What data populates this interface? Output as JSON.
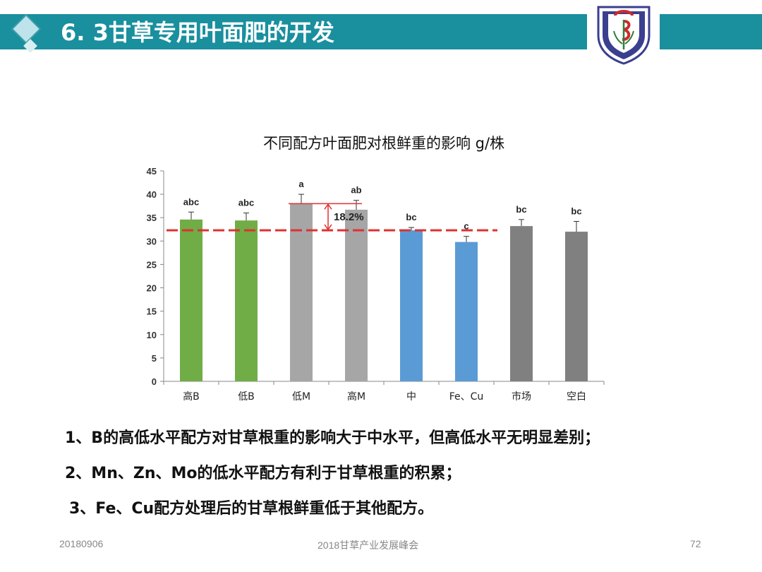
{
  "header": {
    "title": "6. 3甘草专用叶面肥的开发",
    "bar_color": "#1a8f9e"
  },
  "logo_icon": "university-shield-logo",
  "chart_data": {
    "type": "bar",
    "title": "不同配方叶面肥对根鲜重的影响 g/株",
    "categories": [
      "高B",
      "低B",
      "低M",
      "高M",
      "中",
      "Fe、Cu",
      "市场",
      "空白"
    ],
    "values": [
      34.6,
      34.4,
      38.0,
      36.7,
      32.3,
      29.8,
      33.2,
      32.0
    ],
    "errors": [
      1.6,
      1.6,
      2.0,
      2.0,
      0.6,
      1.2,
      1.4,
      2.2
    ],
    "sig_labels": [
      "abc",
      "abc",
      "a",
      "ab",
      "bc",
      "c",
      "bc",
      "bc"
    ],
    "colors": [
      "#70ad47",
      "#70ad47",
      "#a6a6a6",
      "#a6a6a6",
      "#5b9bd5",
      "#5b9bd5",
      "#808080",
      "#808080"
    ],
    "ylim": [
      0,
      45
    ],
    "yticks": [
      0,
      5,
      10,
      15,
      20,
      25,
      30,
      35,
      40,
      45
    ],
    "reference_line": 32.3,
    "reference_color": "#e03030",
    "annotation": "18.2%",
    "xlabel": "",
    "ylabel": ""
  },
  "notes": [
    "1、B的高低水平配方对甘草根重的影响大于中水平，但高低水平无明显差别；",
    "2、Mn、Zn、Mo的低水平配方有利于甘草根重的积累；",
    "3、Fe、Cu配方处理后的甘草根鲜重低于其他配方。"
  ],
  "footer": {
    "date": "20180906",
    "event": "2018甘草产业发展峰会",
    "page": "72"
  }
}
